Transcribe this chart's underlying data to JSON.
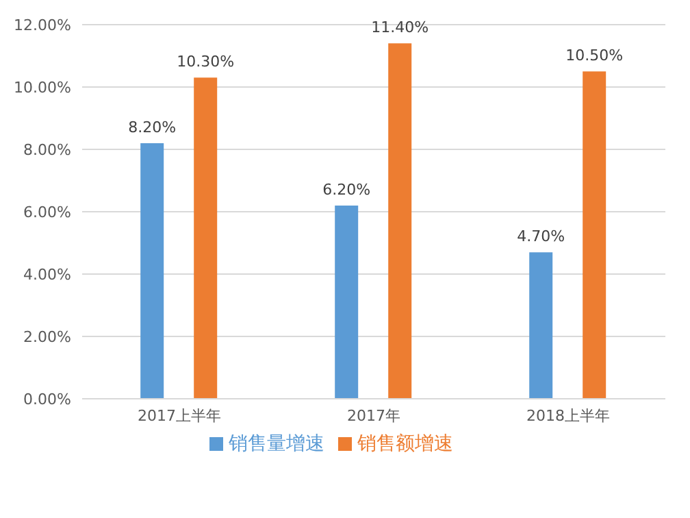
{
  "chart_data": {
    "type": "bar",
    "categories": [
      "2017上半年",
      "2017年",
      "2018上半年"
    ],
    "series": [
      {
        "name": "销售量增速",
        "color": "#5b9bd5",
        "values": [
          8.2,
          6.2,
          4.7
        ],
        "value_labels": [
          "8.20%",
          "6.20%",
          "4.70%"
        ]
      },
      {
        "name": "销售额增速",
        "color": "#ed7d31",
        "values": [
          10.3,
          11.4,
          10.5
        ],
        "value_labels": [
          "10.30%",
          "11.40%",
          "10.50%"
        ]
      }
    ],
    "ylim": [
      0,
      12
    ],
    "yticks": [
      {
        "value": 0,
        "label": "0.00%"
      },
      {
        "value": 2,
        "label": "2.00%"
      },
      {
        "value": 4,
        "label": "4.00%"
      },
      {
        "value": 6,
        "label": "6.00%"
      },
      {
        "value": 8,
        "label": "8.00%"
      },
      {
        "value": 10,
        "label": "10.00%"
      },
      {
        "value": 12,
        "label": "12.00%"
      }
    ],
    "grid": "y",
    "legend": "bottom"
  }
}
